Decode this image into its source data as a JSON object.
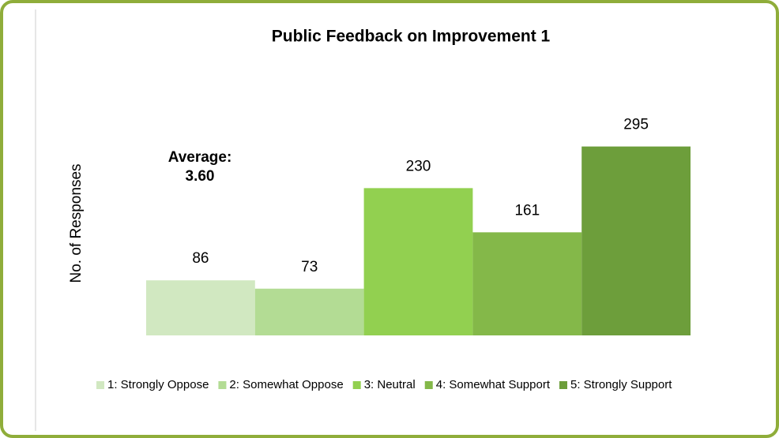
{
  "chart_data": {
    "type": "bar",
    "title": "Public Feedback on Improvement 1",
    "y_label": "No. of Responses",
    "annotation": [
      "Average:",
      "3.60"
    ],
    "categories": [
      "1: Strongly Oppose",
      "2: Somewhat Oppose",
      "3: Neutral",
      "4: Somewhat Support",
      "5: Strongly Support"
    ],
    "values": [
      86,
      73,
      230,
      161,
      295
    ],
    "colors": [
      "#d1e8c1",
      "#b3dc94",
      "#92d050",
      "#84b849",
      "#6d9e3b"
    ],
    "ylim": [
      0,
      350
    ],
    "legend": "bottom"
  }
}
